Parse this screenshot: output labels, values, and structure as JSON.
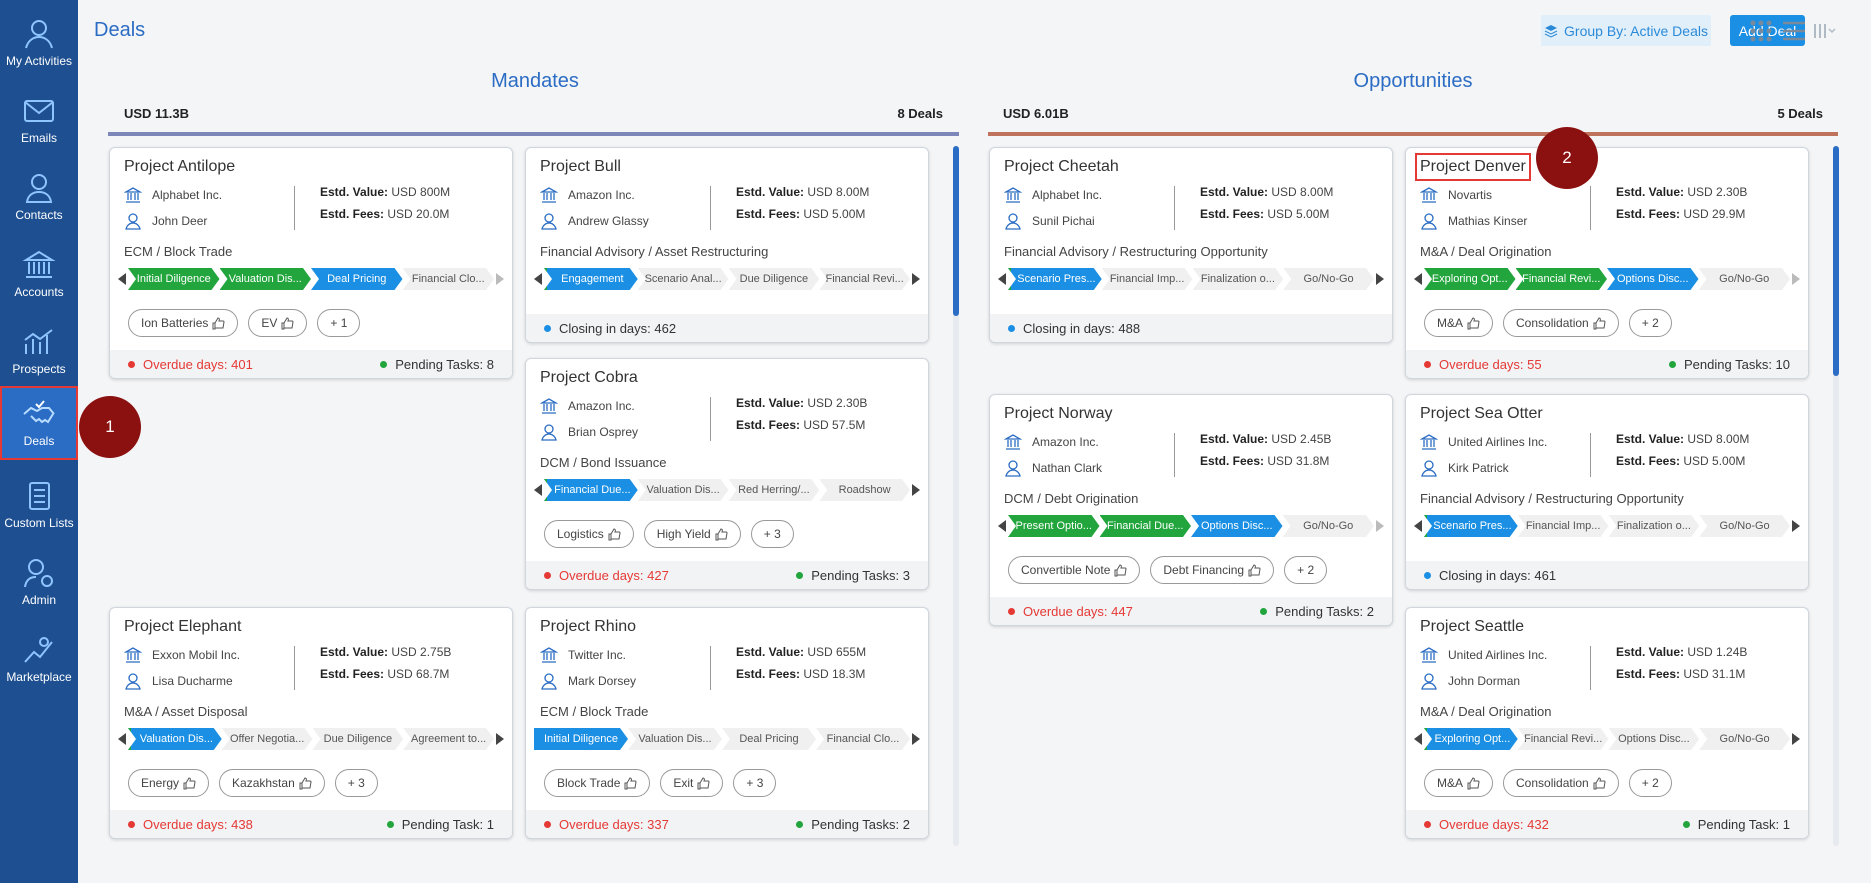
{
  "sidebar": {
    "items": [
      {
        "label": "My Activities",
        "icon": "user-activity-icon"
      },
      {
        "label": "Emails",
        "icon": "mail-icon"
      },
      {
        "label": "Contacts",
        "icon": "contact-icon"
      },
      {
        "label": "Accounts",
        "icon": "bank-icon"
      },
      {
        "label": "Prospects",
        "icon": "chart-icon"
      },
      {
        "label": "Deals",
        "icon": "handshake-icon"
      },
      {
        "label": "Custom Lists",
        "icon": "list-icon"
      },
      {
        "label": "Admin",
        "icon": "admin-gear-icon"
      },
      {
        "label": "Marketplace",
        "icon": "marketplace-icon"
      }
    ]
  },
  "header": {
    "title": "Deals",
    "group_by": "Group By: Active Deals",
    "add_deal": "Add Deal"
  },
  "colors": {
    "sidebar": "#1d4f91",
    "accent": "#1a8fe3",
    "done": "#21a53c",
    "overdue": "#e53935",
    "mandates_bar": "#7c86b8",
    "opportunities_bar": "#c0735c"
  },
  "columns": {
    "mandates": {
      "title": "Mandates",
      "total": "USD 11.3B",
      "count": "8 Deals"
    },
    "opportunities": {
      "title": "Opportunities",
      "total": "USD 6.01B",
      "count": "5 Deals"
    }
  },
  "labels": {
    "estd_value": "Estd. Value:",
    "estd_fees": "Estd. Fees:"
  },
  "cards": {
    "antilope": {
      "title": "Project Antilope",
      "company": "Alphabet Inc.",
      "contact": "John Deer",
      "value": "USD 800M",
      "fees": "USD 20.0M",
      "type": "ECM / Block Trade",
      "stages": [
        "Initial Diligence",
        "Valuation Dis...",
        "Deal Pricing",
        "Financial Clo..."
      ],
      "tags": [
        "Ion Batteries",
        "EV",
        "+ 1"
      ],
      "overdue": "Overdue days: 401",
      "pending": "Pending Tasks: 8"
    },
    "bull": {
      "title": "Project Bull",
      "company": "Amazon Inc.",
      "contact": "Andrew Glassy",
      "value": "USD 8.00M",
      "fees": "USD 5.00M",
      "type": "Financial Advisory / Asset Restructuring",
      "stages": [
        "Engagement",
        "Scenario Anal...",
        "Due Diligence",
        "Financial Revi..."
      ],
      "closing": "Closing in days: 462"
    },
    "cobra": {
      "title": "Project Cobra",
      "company": "Amazon Inc.",
      "contact": "Brian Osprey",
      "value": "USD 2.30B",
      "fees": "USD 57.5M",
      "type": "DCM / Bond Issuance",
      "stages": [
        "Financial Due...",
        "Valuation Dis...",
        "Red Herring/...",
        "Roadshow"
      ],
      "tags": [
        "Logistics",
        "High Yield",
        "+ 3"
      ],
      "overdue": "Overdue days: 427",
      "pending": "Pending Tasks: 3"
    },
    "elephant": {
      "title": "Project Elephant",
      "company": "Exxon Mobil Inc.",
      "contact": "Lisa Ducharme",
      "value": "USD 2.75B",
      "fees": "USD 68.7M",
      "type": "M&A / Asset Disposal",
      "stages": [
        "Valuation Dis...",
        "Offer Negotia...",
        "Due Diligence",
        "Agreement to..."
      ],
      "tags": [
        "Energy",
        "Kazakhstan",
        "+ 3"
      ],
      "overdue": "Overdue days: 438",
      "pending": "Pending Task: 1"
    },
    "rhino": {
      "title": "Project Rhino",
      "company": "Twitter Inc.",
      "contact": "Mark Dorsey",
      "value": "USD 655M",
      "fees": "USD 18.3M",
      "type": "ECM / Block Trade",
      "stages": [
        "Initial Diligence",
        "Valuation Dis...",
        "Deal Pricing",
        "Financial Clo..."
      ],
      "tags": [
        "Block Trade",
        "Exit",
        "+ 3"
      ],
      "overdue": "Overdue days: 337",
      "pending": "Pending Tasks: 2"
    },
    "cheetah": {
      "title": "Project Cheetah",
      "company": "Alphabet Inc.",
      "contact": "Sunil Pichai",
      "value": "USD 8.00M",
      "fees": "USD 5.00M",
      "type": "Financial Advisory / Restructuring Opportunity",
      "stages": [
        "Scenario Pres...",
        "Financial Imp...",
        "Finalization o...",
        "Go/No-Go"
      ],
      "closing": "Closing in days: 488"
    },
    "denver": {
      "title": "Project Denver",
      "company": "Novartis",
      "contact": "Mathias Kinser",
      "value": "USD 2.30B",
      "fees": "USD 29.9M",
      "type": "M&A / Deal Origination",
      "stages": [
        "Exploring Opt...",
        "Financial Revi...",
        "Options Disc...",
        "Go/No-Go"
      ],
      "tags": [
        "M&A",
        "Consolidation",
        "+ 2"
      ],
      "overdue": "Overdue days: 55",
      "pending": "Pending Tasks: 10"
    },
    "norway": {
      "title": "Project Norway",
      "company": "Amazon Inc.",
      "contact": "Nathan Clark",
      "value": "USD 2.45B",
      "fees": "USD 31.8M",
      "type": "DCM / Debt Origination",
      "stages": [
        "Present Optio...",
        "Financial Due...",
        "Options Disc...",
        "Go/No-Go"
      ],
      "tags": [
        "Convertible Note",
        "Debt Financing",
        "+ 2"
      ],
      "overdue": "Overdue days: 447",
      "pending": "Pending Tasks: 2"
    },
    "seaotter": {
      "title": "Project Sea Otter",
      "company": "United Airlines Inc.",
      "contact": "Kirk Patrick",
      "value": "USD 8.00M",
      "fees": "USD 5.00M",
      "type": "Financial Advisory / Restructuring Opportunity",
      "stages": [
        "Scenario Pres...",
        "Financial Imp...",
        "Finalization o...",
        "Go/No-Go"
      ],
      "closing": "Closing in days: 461"
    },
    "seattle": {
      "title": "Project Seattle",
      "company": "United Airlines Inc.",
      "contact": "John Dorman",
      "value": "USD 1.24B",
      "fees": "USD 31.1M",
      "type": "M&A / Deal Origination",
      "stages": [
        "Exploring Opt...",
        "Financial Revi...",
        "Options Disc...",
        "Go/No-Go"
      ],
      "tags": [
        "M&A",
        "Consolidation",
        "+ 2"
      ],
      "overdue": "Overdue days: 432",
      "pending": "Pending Task: 1"
    }
  },
  "markers": {
    "one": "1",
    "two": "2"
  }
}
